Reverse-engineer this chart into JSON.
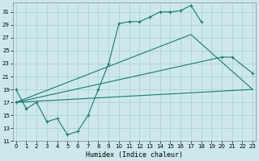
{
  "bg_color": "#cce8ec",
  "grid_color": "#aacfd4",
  "line_color": "#1a7a6e",
  "xlabel": "Humidex (Indice chaleur)",
  "xlim_min": -0.3,
  "xlim_max": 23.3,
  "ylim_min": 11,
  "ylim_max": 32.5,
  "xticks": [
    0,
    1,
    2,
    3,
    4,
    5,
    6,
    7,
    8,
    9,
    10,
    11,
    12,
    13,
    14,
    15,
    16,
    17,
    18,
    19,
    20,
    21,
    22,
    23
  ],
  "yticks": [
    11,
    13,
    15,
    17,
    19,
    21,
    23,
    25,
    27,
    29,
    31
  ],
  "curve1_x": [
    0,
    1,
    2,
    3,
    4,
    5,
    6,
    7,
    8,
    9,
    10,
    11,
    12,
    13,
    14,
    15,
    16,
    17,
    18
  ],
  "curve1_y": [
    19,
    16,
    17,
    14,
    14.5,
    12,
    12.5,
    15,
    19,
    23,
    29.2,
    29.5,
    29.5,
    30.2,
    31,
    31,
    31.2,
    32,
    29.5
  ],
  "curve2_x": [
    0,
    23
  ],
  "curve2_y": [
    17.0,
    19.0
  ],
  "curve3_x": [
    0,
    20,
    21,
    23
  ],
  "curve3_y": [
    17.0,
    24.0,
    24.0,
    21.5
  ],
  "curve4_x": [
    0,
    17,
    23
  ],
  "curve4_y": [
    17.0,
    27.5,
    19.0
  ]
}
